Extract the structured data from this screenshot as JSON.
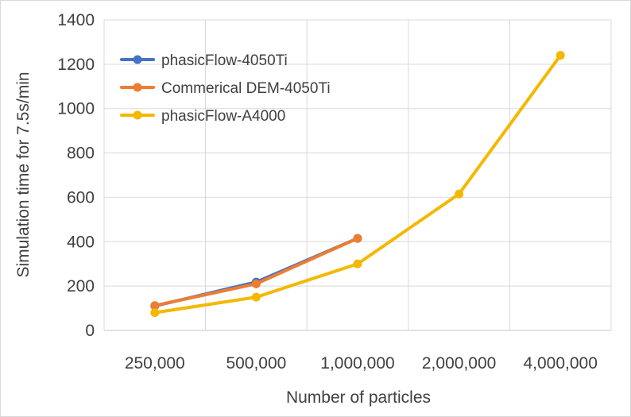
{
  "chart_data": {
    "type": "line",
    "title": "",
    "xlabel": "Number of particles",
    "ylabel": "Simulation time for 7.5s/min",
    "categories": [
      "250,000",
      "500,000",
      "1,000,000",
      "2,000,000",
      "4,000,000"
    ],
    "ylim": [
      0,
      1400
    ],
    "yticks": [
      0,
      200,
      400,
      600,
      800,
      1000,
      1200,
      1400
    ],
    "grid": true,
    "legend_position": "top-left",
    "series": [
      {
        "name": "phasicFlow-4050Ti",
        "color": "#4472C4",
        "values": [
          110,
          218,
          415,
          null,
          null
        ]
      },
      {
        "name": "Commerical DEM-4050Ti",
        "color": "#ED7D31",
        "values": [
          112,
          210,
          415,
          null,
          null
        ]
      },
      {
        "name": "phasicFlow-A4000",
        "color": "#F4B800",
        "values": [
          80,
          150,
          300,
          615,
          1240
        ]
      }
    ]
  }
}
